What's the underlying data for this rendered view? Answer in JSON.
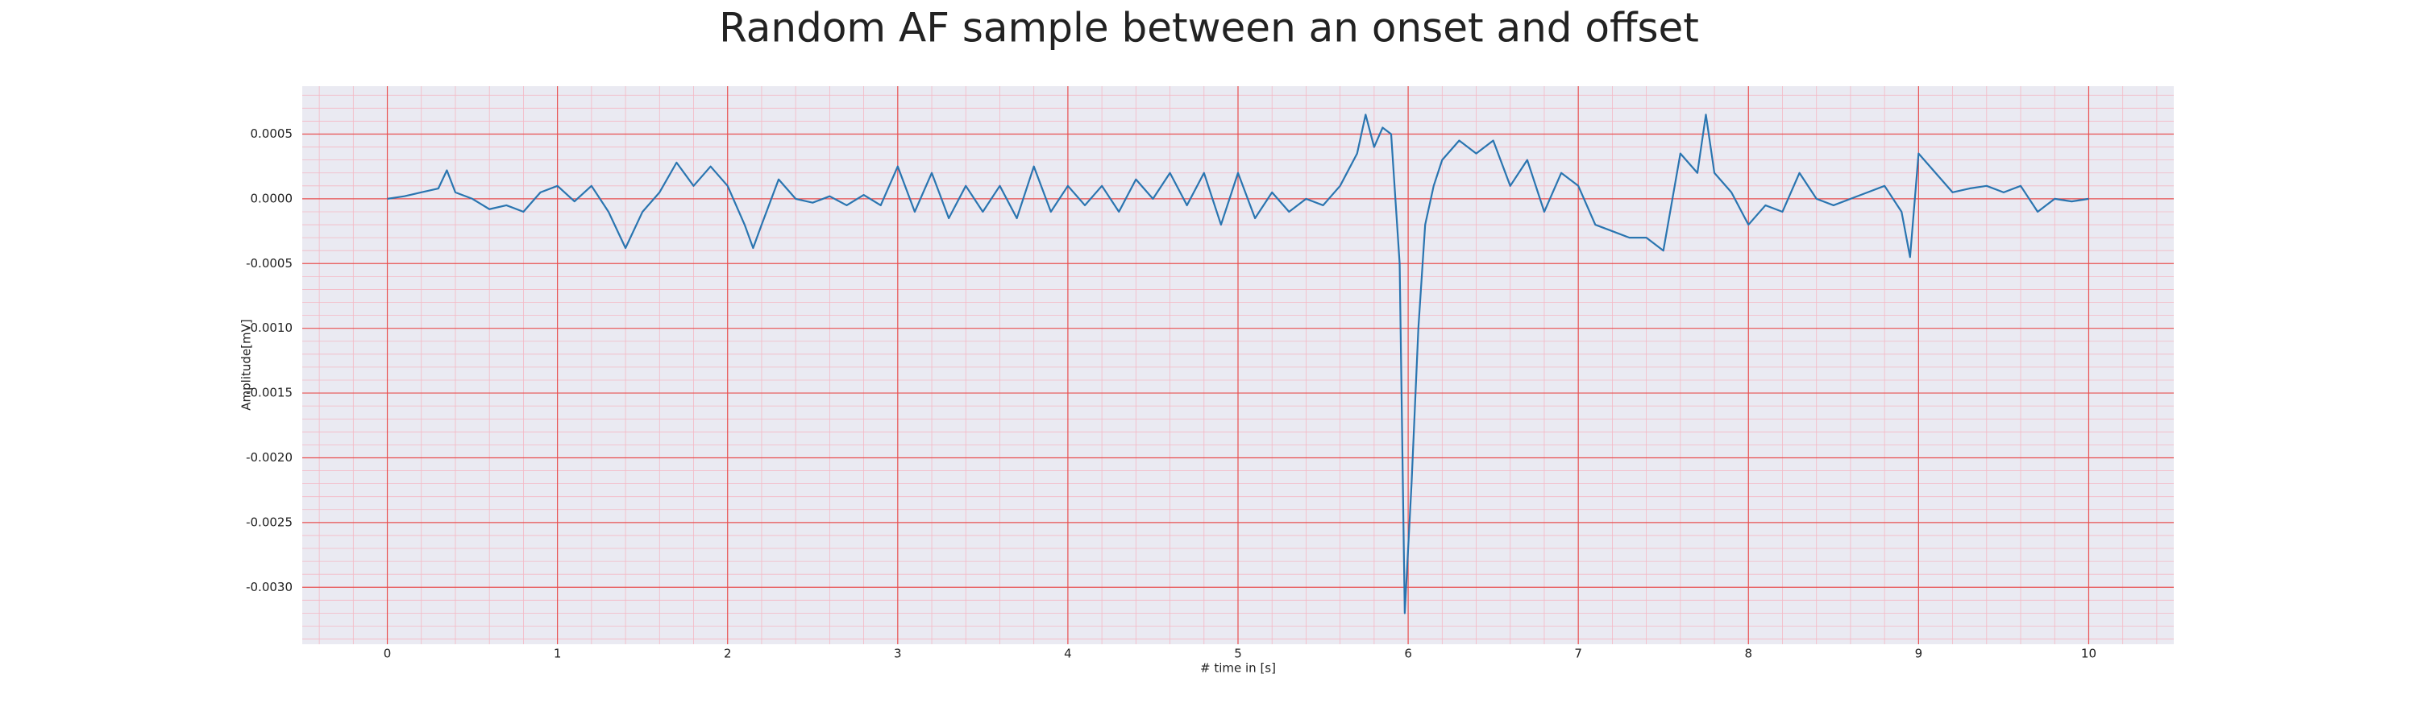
{
  "chart_data": {
    "type": "line",
    "title": "Random AF sample between an onset and offset",
    "xlabel": "# time in [s]",
    "ylabel": "Amplitude[mV]",
    "color": "#2a75b0",
    "grid": true,
    "x": [
      0,
      0.1,
      0.2,
      0.3,
      0.35,
      0.4,
      0.5,
      0.6,
      0.7,
      0.8,
      0.9,
      1.0,
      1.1,
      1.2,
      1.3,
      1.4,
      1.5,
      1.6,
      1.7,
      1.8,
      1.9,
      2.0,
      2.1,
      2.15,
      2.2,
      2.3,
      2.4,
      2.5,
      2.6,
      2.7,
      2.8,
      2.9,
      3.0,
      3.1,
      3.2,
      3.3,
      3.4,
      3.5,
      3.6,
      3.7,
      3.8,
      3.9,
      4.0,
      4.1,
      4.2,
      4.3,
      4.4,
      4.5,
      4.6,
      4.7,
      4.8,
      4.9,
      5.0,
      5.1,
      5.2,
      5.3,
      5.4,
      5.5,
      5.6,
      5.7,
      5.75,
      5.8,
      5.85,
      5.9,
      5.95,
      5.98,
      6.02,
      6.06,
      6.1,
      6.15,
      6.2,
      6.3,
      6.4,
      6.5,
      6.6,
      6.7,
      6.8,
      6.9,
      7.0,
      7.1,
      7.2,
      7.3,
      7.4,
      7.5,
      7.6,
      7.7,
      7.75,
      7.8,
      7.9,
      8.0,
      8.1,
      8.2,
      8.3,
      8.4,
      8.5,
      8.6,
      8.7,
      8.8,
      8.9,
      8.95,
      9.0,
      9.1,
      9.2,
      9.3,
      9.4,
      9.5,
      9.6,
      9.7,
      9.8,
      9.9,
      10.0
    ],
    "values": [
      0,
      2e-05,
      5e-05,
      8e-05,
      0.00022,
      5e-05,
      0,
      -8e-05,
      -5e-05,
      -0.0001,
      5e-05,
      0.0001,
      -2e-05,
      0.0001,
      -0.0001,
      -0.00038,
      -0.0001,
      5e-05,
      0.00028,
      0.0001,
      0.00025,
      0.0001,
      -0.0002,
      -0.00038,
      -0.0002,
      0.00015,
      0,
      -3e-05,
      2e-05,
      -5e-05,
      3e-05,
      -5e-05,
      0.00025,
      -0.0001,
      0.0002,
      -0.00015,
      0.0001,
      -0.0001,
      0.0001,
      -0.00015,
      0.00025,
      -0.0001,
      0.0001,
      -5e-05,
      0.0001,
      -0.0001,
      0.00015,
      0,
      0.0002,
      -5e-05,
      0.0002,
      -0.0002,
      0.0002,
      -0.00015,
      5e-05,
      -0.0001,
      0,
      -5e-05,
      0.0001,
      0.00035,
      0.00065,
      0.0004,
      0.00055,
      0.0005,
      -0.0005,
      -0.0032,
      -0.0022,
      -0.001,
      -0.0002,
      0.0001,
      0.0003,
      0.00045,
      0.00035,
      0.00045,
      0.0001,
      0.0003,
      -0.0001,
      0.0002,
      0.0001,
      -0.0002,
      -0.00025,
      -0.0003,
      -0.0003,
      -0.0004,
      0.00035,
      0.0002,
      0.00065,
      0.0002,
      5e-05,
      -0.0002,
      -5e-05,
      -0.0001,
      0.0002,
      0,
      -5e-05,
      0,
      5e-05,
      0.0001,
      -0.0001,
      -0.00045,
      0.00035,
      0.0002,
      5e-05,
      8e-05,
      0.0001,
      5e-05,
      0.0001,
      -0.0001,
      0,
      -2e-05,
      0
    ],
    "xlim": [
      -0.5,
      10.5
    ],
    "xticks": [
      0,
      1,
      2,
      3,
      4,
      5,
      6,
      7,
      8,
      9,
      10
    ],
    "ylim": [
      -0.00344,
      0.00087
    ],
    "yticks": [
      0.0005,
      {
        "value": 0,
        "label": "0.0000"
      },
      -0.0005,
      {
        "value": -0.001,
        "label": "-0.0010"
      },
      -0.0015,
      {
        "value": -0.002,
        "label": "-0.0020"
      },
      -0.0025,
      {
        "value": -0.003,
        "label": "-0.0030"
      }
    ]
  }
}
